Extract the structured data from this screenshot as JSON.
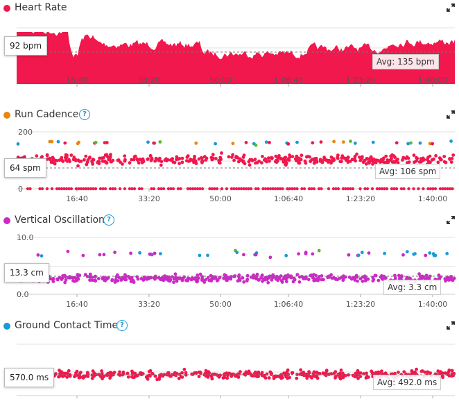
{
  "x_ticks": [
    "16:40",
    "33:20",
    "50:00",
    "1:06:40",
    "1:23:20",
    "1:40:00"
  ],
  "colors": {
    "heart_rate": "#f0184d",
    "cadence_dot": "#e8870e",
    "vertical_oscillation_dot": "#cc29c6",
    "ground_contact_dot": "#1a9ad6",
    "help": "#1a9ad6",
    "zone_green": "#5cb82e",
    "zone_blue": "#1a9ad6",
    "zone_orange": "#e8870e",
    "zone_red": "#f0184d",
    "zone_purple": "#cc29c6"
  },
  "panels": {
    "heart_rate": {
      "title": "Heart Rate",
      "readout": "92 bpm",
      "avg_label": "Avg: 135 bpm",
      "icons": {
        "expand": "expand-icon"
      }
    },
    "cadence": {
      "title": "Run Cadence",
      "readout": "64 spm",
      "avg_label": "Avg: 106 spm",
      "y_ticks": [
        "200",
        "0"
      ],
      "icons": {
        "help": "help-icon",
        "expand": "expand-icon"
      }
    },
    "vertical_oscillation": {
      "title": "Vertical Oscillation",
      "readout": "13.3 cm",
      "avg_label": "Avg: 3.3 cm",
      "y_ticks": [
        "10.0",
        "0.0"
      ],
      "icons": {
        "help": "help-icon",
        "expand": "expand-icon"
      }
    },
    "ground_contact": {
      "title": "Ground Contact Time",
      "readout": "570.0 ms",
      "avg_label": "Avg: 492.0 ms",
      "icons": {
        "help": "help-icon",
        "expand": "expand-icon"
      }
    }
  }
}
